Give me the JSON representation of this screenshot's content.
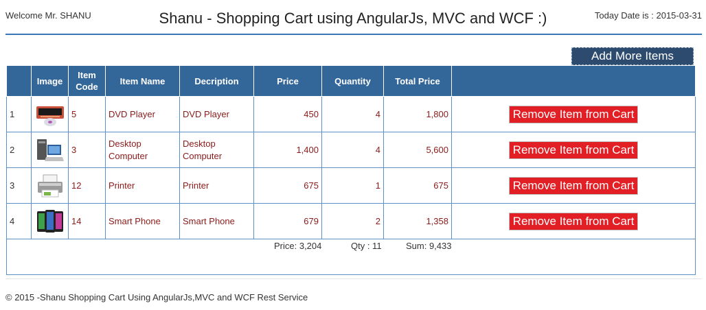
{
  "header": {
    "welcome": "Welcome Mr. SHANU",
    "title": "Shanu - Shopping Cart using AngularJs, MVC and WCF :)",
    "today": "Today Date is : 2015-03-31"
  },
  "actions": {
    "add_more": "Add More Items"
  },
  "table": {
    "columns": [
      "",
      "Image",
      "Item Code",
      "Item Name",
      "Decription",
      "Price",
      "Quantity",
      "Total Price",
      ""
    ],
    "rows": [
      {
        "index": "1",
        "image": "dvd-player-icon",
        "code": "5",
        "name": "DVD Player",
        "description": "DVD Player",
        "price": "450",
        "quantity": "4",
        "total": "1,800",
        "action": "Remove Item from Cart"
      },
      {
        "index": "2",
        "image": "desktop-computer-icon",
        "code": "3",
        "name": "Desktop Computer",
        "description": "Desktop Computer",
        "price": "1,400",
        "quantity": "4",
        "total": "5,600",
        "action": "Remove Item from Cart"
      },
      {
        "index": "3",
        "image": "printer-icon",
        "code": "12",
        "name": "Printer",
        "description": "Printer",
        "price": "675",
        "quantity": "1",
        "total": "675",
        "action": "Remove Item from Cart"
      },
      {
        "index": "4",
        "image": "smart-phone-icon",
        "code": "14",
        "name": "Smart Phone",
        "description": "Smart Phone",
        "price": "679",
        "quantity": "2",
        "total": "1,358",
        "action": "Remove Item from Cart"
      }
    ]
  },
  "summary": {
    "price": "Price: 3,204",
    "qty": "Qty : 11",
    "sum": "Sum: 9,433"
  },
  "footer": {
    "text": "© 2015 -Shanu Shopping Cart Using AngularJs,MVC and WCF Rest Service"
  },
  "colors": {
    "header_bg": "#336699",
    "accent": "#3a77b8",
    "remove_button": "#e31f26",
    "add_button": "#2d4b6e",
    "cell_text": "#8b1a1a"
  }
}
